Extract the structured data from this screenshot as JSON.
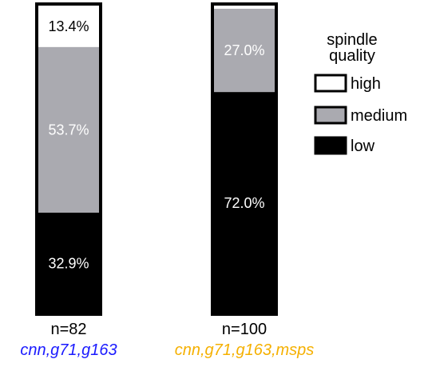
{
  "chart_data": {
    "type": "bar",
    "stacked": true,
    "normalized_to": 100,
    "categories": [
      {
        "n_label": "n=82",
        "genotype": "cnn,g71,g163",
        "genotype_color": "#1a1aff"
      },
      {
        "n_label": "n=100",
        "genotype": "cnn,g71,g163,msps",
        "genotype_color": "#f5b000"
      }
    ],
    "series": [
      {
        "name": "low",
        "color": "#000000",
        "label_color": "#ffffff",
        "values": [
          32.9,
          72.0
        ],
        "labels": [
          "32.9%",
          "72.0%"
        ]
      },
      {
        "name": "medium",
        "color": "#aaaab0",
        "label_color": "#ffffff",
        "values": [
          53.7,
          27.0
        ],
        "labels": [
          "53.7%",
          "27.0%"
        ]
      },
      {
        "name": "high",
        "color": "#ffffff",
        "label_color": "#000000",
        "values": [
          13.4,
          1.0
        ],
        "labels": [
          "13.4%",
          ""
        ]
      }
    ],
    "legend": {
      "title_lines": [
        "spindle",
        "quality"
      ],
      "entries": [
        {
          "name": "high",
          "color": "#ffffff"
        },
        {
          "name": "medium",
          "color": "#aaaab0"
        },
        {
          "name": "low",
          "color": "#000000"
        }
      ],
      "position": "right"
    },
    "ylim": [
      0,
      100
    ],
    "grid": false,
    "axes_visible": false
  }
}
